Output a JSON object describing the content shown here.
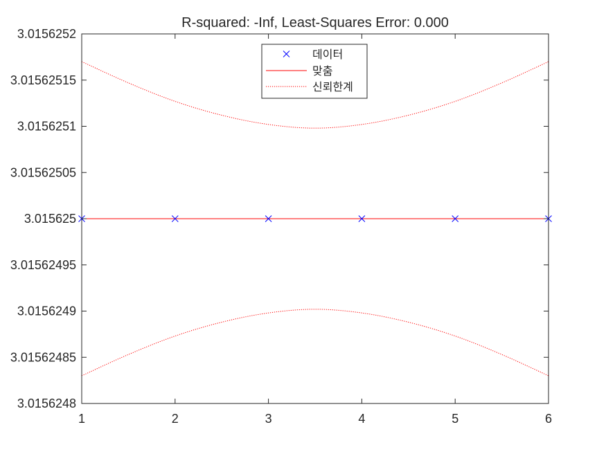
{
  "chart_data": {
    "type": "line",
    "title": "R-squared: -Inf, Least-Squares Error: 0.000",
    "xlabel": "",
    "ylabel": "",
    "xlim": [
      1,
      6
    ],
    "ylim": [
      3.0156248,
      3.0156252
    ],
    "x_ticks": [
      "1",
      "2",
      "3",
      "4",
      "5",
      "6"
    ],
    "y_ticks": [
      "3.0156248",
      "3.01562485",
      "3.0156249",
      "3.01562495",
      "3.015625",
      "3.01562505",
      "3.0156251",
      "3.01562515",
      "3.0156252"
    ],
    "grid": false,
    "legend_position": "top-center",
    "series": [
      {
        "name": "데이터",
        "style": "markers",
        "marker": "x",
        "color": "#0000ff",
        "x": [
          1,
          2,
          3,
          4,
          5,
          6
        ],
        "y": [
          3.015625,
          3.015625,
          3.015625,
          3.015625,
          3.015625,
          3.015625
        ]
      },
      {
        "name": "맞춤",
        "style": "solid-line",
        "color": "#ff0000",
        "x": [
          1,
          6
        ],
        "y": [
          3.015625,
          3.015625
        ]
      },
      {
        "name": "신뢰한계",
        "style": "dotted-line",
        "color": "#ff0000",
        "x": [
          1,
          1.5,
          2,
          2.5,
          3,
          3.5,
          4,
          4.5,
          5,
          5.5,
          6
        ],
        "upper": [
          3.01562517,
          3.015625147,
          3.015625127,
          3.015625112,
          3.015625102,
          3.015625098,
          3.015625102,
          3.015625112,
          3.015625127,
          3.015625147,
          3.01562517
        ],
        "lower": [
          3.01562483,
          3.015624853,
          3.015624873,
          3.015624888,
          3.015624898,
          3.015624902,
          3.015624898,
          3.015624888,
          3.015624873,
          3.015624853,
          3.01562483
        ]
      }
    ]
  }
}
